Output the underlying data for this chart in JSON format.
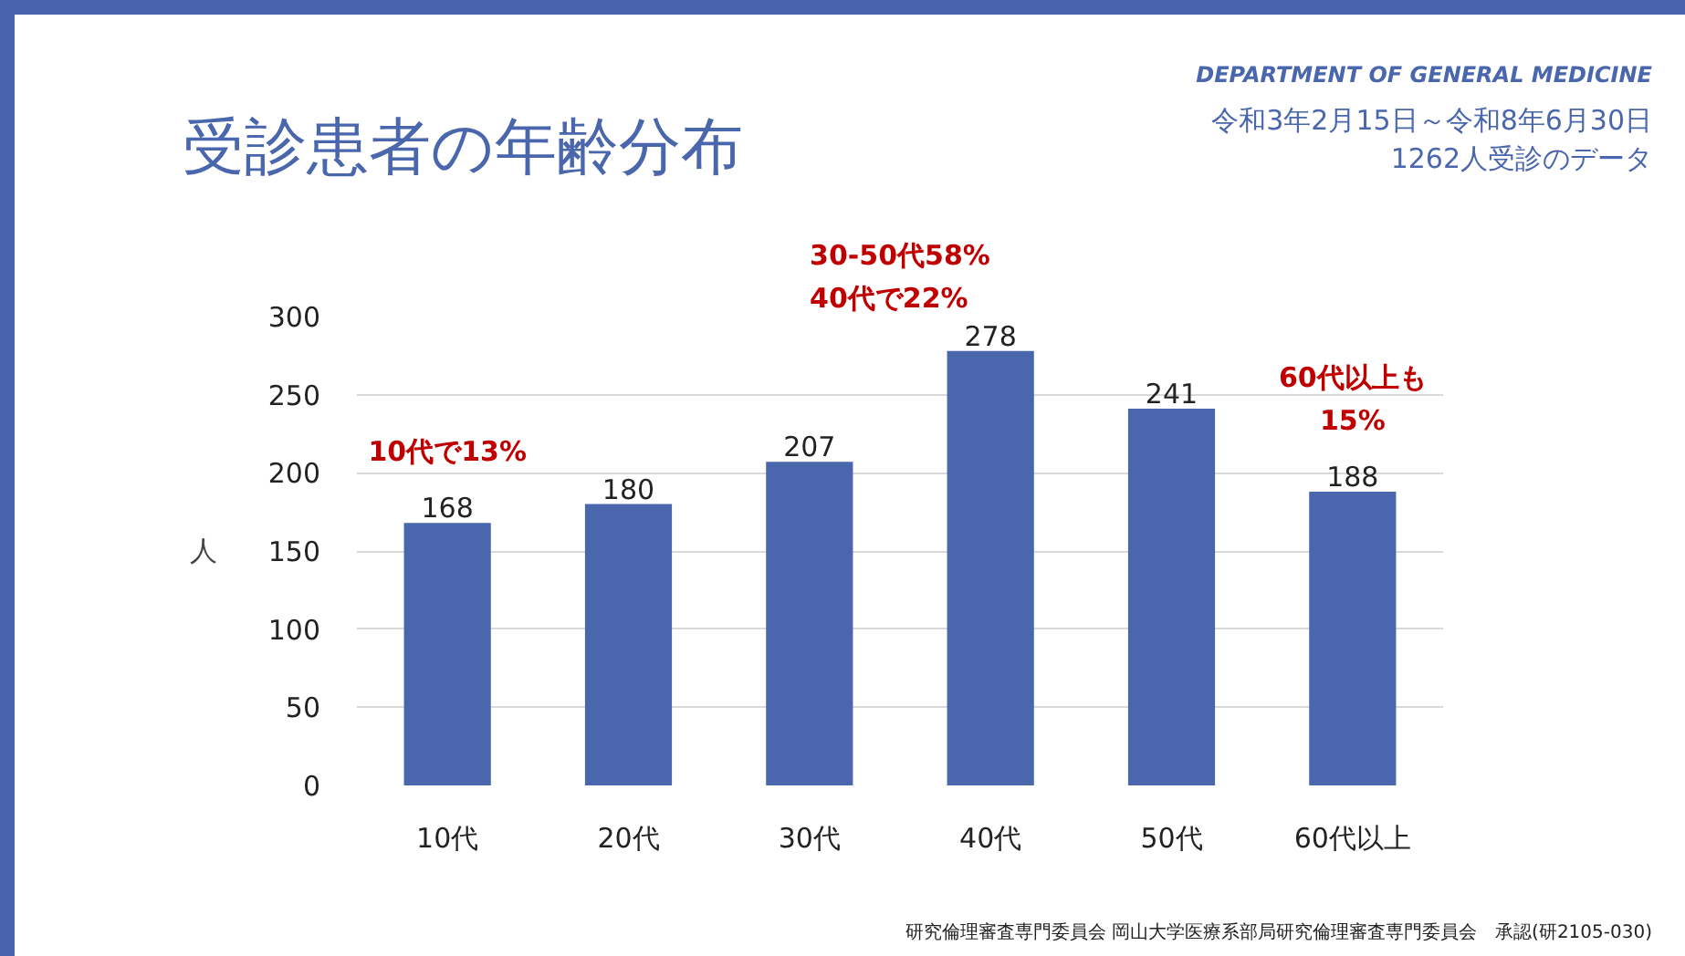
{
  "chart_data": {
    "type": "bar",
    "title": "受診患者の年齢分布",
    "subtitle": "令和3年2月15日～令和8年6月30日\n1262人受診のデータ",
    "ylabel": "人",
    "categories": [
      "10代",
      "20代",
      "30代",
      "40代",
      "50代",
      "60代以上"
    ],
    "values": [
      168,
      180,
      207,
      278,
      241,
      188
    ],
    "color": "#4a66ac",
    "ylim": [
      0,
      300
    ],
    "yticks": [
      0,
      50,
      100,
      150,
      200,
      250,
      300
    ],
    "grid": "y",
    "data_labels": true,
    "annotations": [
      "DEPARTMENT OF GENERAL MEDICINE",
      "研究倫理審査専門委員会 岡山大学医療系部局研究倫理審査専門委員会　承認(研2105-030)",
      {
        "text": "10代で13%",
        "x": "10代",
        "y": 168
      },
      {
        "text": "30-50代58%\n40代で22%",
        "x": "40代",
        "y": 278
      },
      {
        "text": "60代以上も\n15%",
        "x": "60代以上",
        "y": 188
      }
    ]
  }
}
